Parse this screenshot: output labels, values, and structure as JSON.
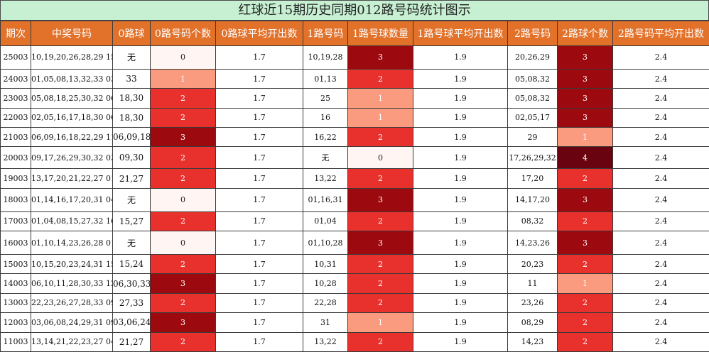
{
  "title": "红球近15期历史同期012路号码统计图示",
  "chart_data": {
    "type": "table",
    "columns": [
      "期次",
      "中奖号码",
      "0路球",
      "0路号码个数",
      "0路球平均开出数",
      "1路号码",
      "1路号球数量",
      "1路号球平均开出数",
      "2路号码",
      "2路球个数",
      "2路号码平均开出数"
    ],
    "rows": [
      {
        "issue": "25003",
        "numbers": "10,19,20,26,28,29 15",
        "r0": "无",
        "c0": 0,
        "a0": "1.7",
        "r1": "10,19,28",
        "c1": 3,
        "a1": "1.9",
        "r2": "20,26,29",
        "c2": 3,
        "a2": "2.4"
      },
      {
        "issue": "24003",
        "numbers": "01,05,08,13,32,33 03",
        "r0": "33",
        "c0": 1,
        "a0": "1.7",
        "r1": "01,13",
        "c1": 2,
        "a1": "1.9",
        "r2": "05,08,32",
        "c2": 3,
        "a2": "2.4"
      },
      {
        "issue": "23003",
        "numbers": "05,08,18,25,30,32 06",
        "r0": "18,30",
        "c0": 2,
        "a0": "1.7",
        "r1": "25",
        "c1": 1,
        "a1": "1.9",
        "r2": "05,08,32",
        "c2": 3,
        "a2": "2.4"
      },
      {
        "issue": "22003",
        "numbers": "02,05,16,17,18,30 06",
        "r0": "18,30",
        "c0": 2,
        "a0": "1.7",
        "r1": "16",
        "c1": 1,
        "a1": "1.9",
        "r2": "02,05,17",
        "c2": 3,
        "a2": "2.4"
      },
      {
        "issue": "21003",
        "numbers": "06,09,16,18,22,29 11",
        "r0": "06,09,18",
        "c0": 3,
        "a0": "1.7",
        "r1": "16,22",
        "c1": 2,
        "a1": "1.9",
        "r2": "29",
        "c2": 1,
        "a2": "2.4"
      },
      {
        "issue": "20003",
        "numbers": "09,17,26,29,30,32 03",
        "r0": "09,30",
        "c0": 2,
        "a0": "1.7",
        "r1": "无",
        "c1": 0,
        "a1": "1.9",
        "r2": "17,26,29,32",
        "c2": 4,
        "a2": "2.4"
      },
      {
        "issue": "19003",
        "numbers": "13,17,20,21,22,27 01",
        "r0": "21,27",
        "c0": 2,
        "a0": "1.7",
        "r1": "13,22",
        "c1": 2,
        "a1": "1.9",
        "r2": "17,20",
        "c2": 2,
        "a2": "2.4"
      },
      {
        "issue": "18003",
        "numbers": "01,14,16,17,20,31 04",
        "r0": "无",
        "c0": 0,
        "a0": "1.7",
        "r1": "01,16,31",
        "c1": 3,
        "a1": "1.9",
        "r2": "14,17,20",
        "c2": 3,
        "a2": "2.4"
      },
      {
        "issue": "17003",
        "numbers": "01,04,08,15,27,32 16",
        "r0": "15,27",
        "c0": 2,
        "a0": "1.7",
        "r1": "01,04",
        "c1": 2,
        "a1": "1.9",
        "r2": "08,32",
        "c2": 2,
        "a2": "2.4"
      },
      {
        "issue": "16003",
        "numbers": "01,10,14,23,26,28 01",
        "r0": "无",
        "c0": 0,
        "a0": "1.7",
        "r1": "01,10,28",
        "c1": 3,
        "a1": "1.9",
        "r2": "14,23,26",
        "c2": 3,
        "a2": "2.4"
      },
      {
        "issue": "15003",
        "numbers": "10,15,20,23,24,31 15",
        "r0": "15,24",
        "c0": 2,
        "a0": "1.7",
        "r1": "10,31",
        "c1": 2,
        "a1": "1.9",
        "r2": "20,23",
        "c2": 2,
        "a2": "2.4"
      },
      {
        "issue": "14003",
        "numbers": "06,10,11,28,30,33 12",
        "r0": "06,30,33",
        "c0": 3,
        "a0": "1.7",
        "r1": "10,28",
        "c1": 2,
        "a1": "1.9",
        "r2": "11",
        "c2": 1,
        "a2": "2.4"
      },
      {
        "issue": "13003",
        "numbers": "22,23,26,27,28,33 09",
        "r0": "27,33",
        "c0": 2,
        "a0": "1.7",
        "r1": "22,28",
        "c1": 2,
        "a1": "1.9",
        "r2": "23,26",
        "c2": 2,
        "a2": "2.4"
      },
      {
        "issue": "12003",
        "numbers": "03,06,08,24,29,31 09",
        "r0": "03,06,24",
        "c0": 3,
        "a0": "1.7",
        "r1": "31",
        "c1": 1,
        "a1": "1.9",
        "r2": "08,29",
        "c2": 2,
        "a2": "2.4"
      },
      {
        "issue": "11003",
        "numbers": "13,14,21,22,23,27 04",
        "r0": "21,27",
        "c0": 2,
        "a0": "1.7",
        "r1": "13,22",
        "c1": 2,
        "a1": "1.9",
        "r2": "14,23",
        "c2": 2,
        "a2": "2.4"
      }
    ]
  },
  "colors": {
    "header_bg": "#e2712a",
    "title_bg": "#c7f0d3",
    "heat_0": "#fff5f2",
    "heat_1": "#fa9b80",
    "heat_2": "#e8312d",
    "heat_3": "#9c0a10",
    "heat_4": "#6a0310"
  }
}
